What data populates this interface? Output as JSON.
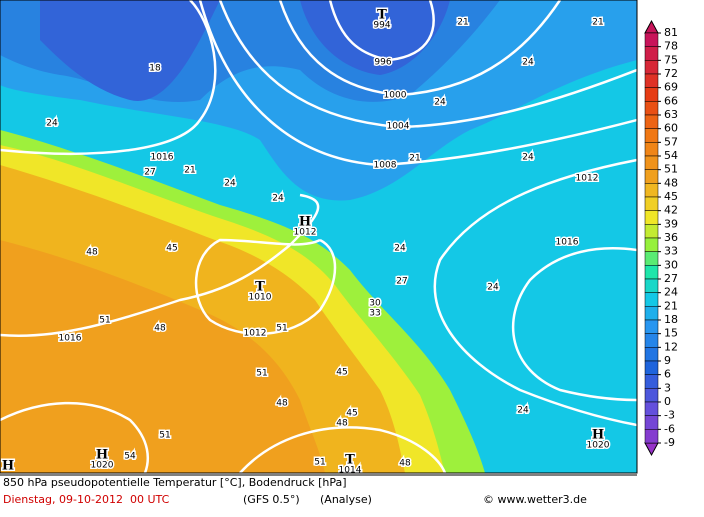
{
  "map": {
    "isobar_labels": [
      "996",
      "1000",
      "1004",
      "1008",
      "1012",
      "1012",
      "1016",
      "1016",
      "1016"
    ],
    "centers": [
      {
        "symbol": "T",
        "value": "994"
      },
      {
        "symbol": "H",
        "value": "1012"
      },
      {
        "symbol": "T",
        "value": "1010"
      },
      {
        "symbol": "H",
        "value": "1020"
      },
      {
        "symbol": "H",
        "value": "1020"
      },
      {
        "symbol": "T",
        "value": "1014"
      },
      {
        "symbol": "H"
      }
    ],
    "isotherm_labels": [
      "24",
      "27",
      "21",
      "24",
      "24",
      "18",
      "21",
      "24",
      "24",
      "21",
      "24",
      "24",
      "27",
      "24",
      "30",
      "33",
      "45",
      "48",
      "51",
      "48",
      "51",
      "51",
      "45",
      "48",
      "45",
      "48",
      "51",
      "54",
      "51",
      "48",
      "24",
      "21"
    ]
  },
  "colorbar": {
    "ticks": [
      81,
      78,
      75,
      72,
      69,
      66,
      63,
      60,
      57,
      54,
      51,
      48,
      45,
      42,
      39,
      36,
      33,
      30,
      27,
      24,
      21,
      18,
      15,
      12,
      9,
      6,
      3,
      0,
      -3,
      -6,
      -9
    ]
  },
  "footer": {
    "title": "850 hPa pseudopotentielle Temperatur [°C], Bodendruck [hPa]",
    "date": "Dienstag, 09-10-2012  00 UTC",
    "model": "(GFS 0.5°)",
    "analysis": "(Analyse)",
    "credit": "© www.wetter3.de"
  }
}
